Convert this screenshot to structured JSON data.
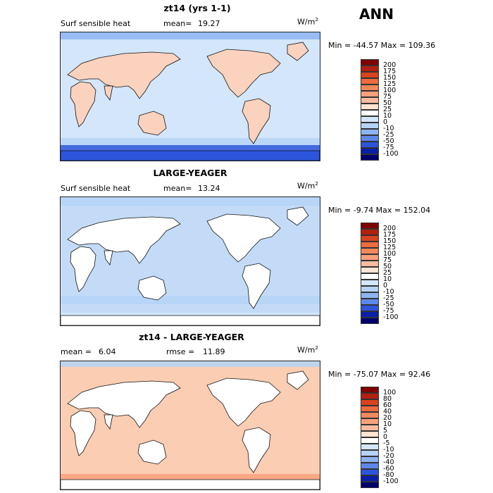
{
  "header": {
    "season": "ANN"
  },
  "panels": [
    {
      "title": "zt14 (yrs 1-1)",
      "variable": "Surf sensible heat",
      "stat_label": "mean=",
      "stat_value": "19.27",
      "stat2_label": "",
      "stat2_value": "",
      "units": "W/m",
      "units_exp": "2",
      "minmax": "Min = -44.57 Max = 109.36",
      "ocean_color": "#d3e6fb",
      "land_color": "#fbd2bd",
      "contour_levels": [
        "200",
        "175",
        "150",
        "125",
        "100",
        "75",
        "50",
        "25",
        "10",
        "0",
        "-10",
        "-25",
        "-50",
        "-75",
        "-100"
      ],
      "contour_colors": [
        "#7f0000",
        "#b3200e",
        "#d9431d",
        "#ee6a3f",
        "#f5875c",
        "#f8a07c",
        "#fbbb9d",
        "#fde3d2",
        "#ffffff",
        "#d3e6fb",
        "#b5d3f6",
        "#8db4f1",
        "#5d88ea",
        "#2c55db",
        "#0a1fa8",
        "#00006b"
      ]
    },
    {
      "title": "LARGE-YEAGER",
      "variable": "Surf sensible heat",
      "stat_label": "mean=",
      "stat_value": "13.24",
      "stat2_label": "",
      "stat2_value": "",
      "units": "W/m",
      "units_exp": "2",
      "minmax": "Min = -9.74 Max = 152.04",
      "ocean_color": "#c4dbf8",
      "land_color": "#ffffff",
      "contour_levels": [
        "200",
        "175",
        "150",
        "125",
        "100",
        "75",
        "50",
        "25",
        "10",
        "0",
        "-10",
        "-25",
        "-50",
        "-75",
        "-100"
      ],
      "contour_colors": [
        "#7f0000",
        "#b3200e",
        "#d9431d",
        "#ee6a3f",
        "#f5875c",
        "#f8a07c",
        "#fbbb9d",
        "#fde3d2",
        "#ffffff",
        "#d3e6fb",
        "#b5d3f6",
        "#8db4f1",
        "#5d88ea",
        "#2c55db",
        "#0a1fa8",
        "#00006b"
      ]
    },
    {
      "title": "zt14 - LARGE-YEAGER",
      "variable": "",
      "stat_label": "mean =",
      "stat_value": "6.04",
      "stat2_label": "rmse =",
      "stat2_value": "11.89",
      "units": "W/m",
      "units_exp": "2",
      "minmax": "Min = -75.07 Max = 92.46",
      "ocean_color": "#fbcdb3",
      "land_color": "#ffffff",
      "contour_levels": [
        "100",
        "80",
        "60",
        "40",
        "20",
        "10",
        "5",
        "0",
        "-5",
        "-10",
        "-20",
        "-40",
        "-60",
        "-80",
        "-100"
      ],
      "contour_colors": [
        "#7f0000",
        "#b3200e",
        "#d9431d",
        "#ee6a3f",
        "#f5875c",
        "#f8a07c",
        "#fbbb9d",
        "#fde3d2",
        "#ffffff",
        "#d3e6fb",
        "#b5d3f6",
        "#8db4f1",
        "#5d88ea",
        "#2c55db",
        "#0a1fa8",
        "#00006b"
      ]
    }
  ],
  "chart_data": [
    {
      "type": "heatmap",
      "title": "zt14 (yrs 1-1)",
      "subtitle": "Surf sensible heat",
      "mean": 19.27,
      "min": -44.57,
      "max": 109.36,
      "units": "W/m2",
      "levels": [
        -100,
        -75,
        -50,
        -25,
        -10,
        0,
        10,
        25,
        50,
        75,
        100,
        125,
        150,
        175,
        200
      ]
    },
    {
      "type": "heatmap",
      "title": "LARGE-YEAGER",
      "subtitle": "Surf sensible heat",
      "mean": 13.24,
      "min": -9.74,
      "max": 152.04,
      "units": "W/m2",
      "levels": [
        -100,
        -75,
        -50,
        -25,
        -10,
        0,
        10,
        25,
        50,
        75,
        100,
        125,
        150,
        175,
        200
      ]
    },
    {
      "type": "heatmap",
      "title": "zt14 - LARGE-YEAGER",
      "mean": 6.04,
      "rmse": 11.89,
      "min": -75.07,
      "max": 92.46,
      "units": "W/m2",
      "levels": [
        -100,
        -80,
        -60,
        -40,
        -20,
        -10,
        -5,
        0,
        5,
        10,
        20,
        40,
        60,
        80,
        100
      ]
    }
  ]
}
